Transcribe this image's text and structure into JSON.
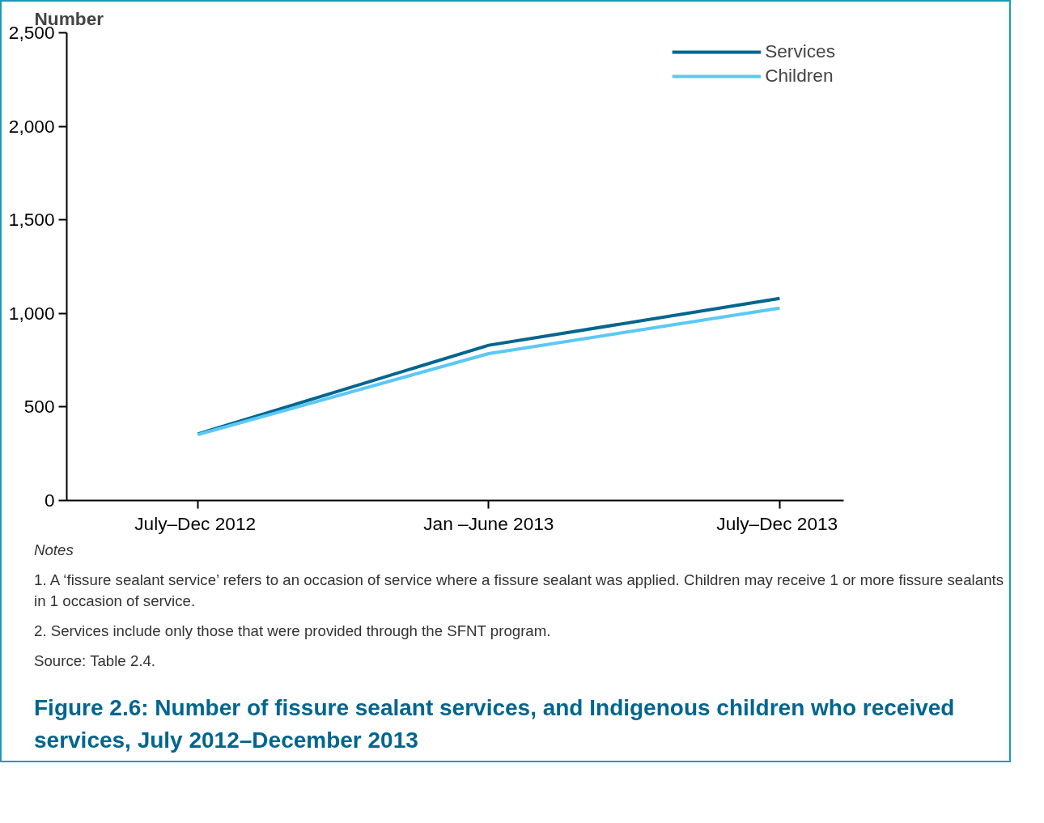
{
  "chart_data": {
    "type": "line",
    "title": "Figure 2.6: Number of fissure sealant services, and Indigenous children who received services, July 2012–December 2013",
    "ylabel": "Number",
    "categories": [
      "July–Dec  2012",
      "Jan –June 2013",
      "July–Dec  2013"
    ],
    "series": [
      {
        "name": "Services",
        "color": "#00658f",
        "values": [
          355,
          830,
          1080
        ]
      },
      {
        "name": "Children",
        "color": "#5bc8f5",
        "values": [
          352,
          785,
          1028
        ]
      }
    ],
    "ylim": [
      0,
      2500
    ],
    "yticks": [
      0,
      500,
      {
        "value": 1000,
        "label": "1,000"
      },
      {
        "value": 1500,
        "label": "1,500"
      },
      {
        "value": 2000,
        "label": "2,000"
      },
      {
        "value": 2500,
        "label": "2,500"
      }
    ],
    "grid": false,
    "legend": "top right",
    "marker": "none",
    "line_style": "solid",
    "annotations": [
      "Notes",
      "1. A ‘fissure sealant service’ refers to an occasion of service where a fissure sealant was applied. Children may receive 1 or more fissure sealants in 1 occasion of service.",
      "2. Services include only those that were provided through the SFNT program.",
      "Source: Table 2.4."
    ]
  }
}
